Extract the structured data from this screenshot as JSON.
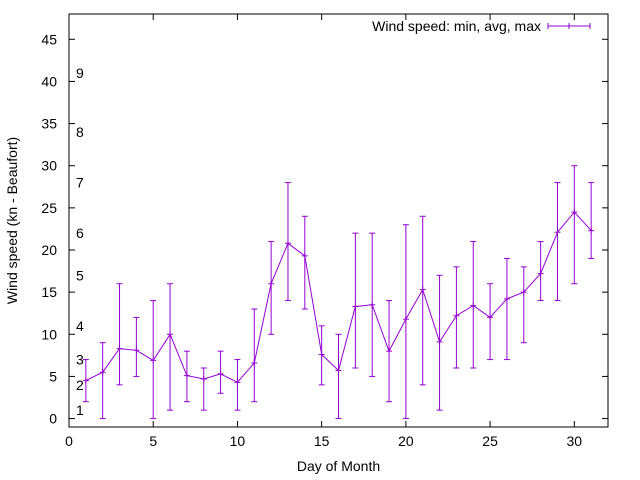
{
  "chart_data": {
    "type": "line",
    "title": "",
    "xlabel": "Day of Month",
    "ylabel": "Wind speed (kn - Beaufort)",
    "xlim": [
      0,
      32
    ],
    "ylim": [
      -1,
      48
    ],
    "xticks": [
      0,
      5,
      10,
      15,
      20,
      25,
      30
    ],
    "yticks": [
      0,
      5,
      10,
      15,
      20,
      25,
      30,
      35,
      40,
      45
    ],
    "grid": false,
    "legend_position": "top-right",
    "series_color": "#9400d3",
    "series": [
      {
        "name": "Wind speed: min, avg, max",
        "errorbars": true,
        "x": [
          1,
          2,
          3,
          4,
          5,
          6,
          7,
          8,
          9,
          10,
          11,
          12,
          13,
          14,
          15,
          16,
          17,
          18,
          19,
          20,
          21,
          22,
          23,
          24,
          25,
          26,
          27,
          28,
          29,
          30,
          31
        ],
        "y": [
          4.5,
          5.5,
          8.3,
          8.1,
          6.9,
          10,
          5.1,
          4.7,
          5.3,
          4.3,
          6.6,
          16,
          20.8,
          19.3,
          7.6,
          5.7,
          13.3,
          13.5,
          8,
          11.8,
          15.3,
          9.1,
          12.2,
          13.4,
          12,
          14.2,
          15,
          17.2,
          22.1,
          24.5,
          22.3
        ],
        "min": [
          2,
          0,
          4,
          5,
          0,
          1,
          2,
          1,
          3,
          1,
          2,
          10,
          14,
          13,
          4,
          0,
          6,
          5,
          2,
          0,
          4,
          1,
          6,
          6,
          7,
          7,
          9,
          14,
          14,
          16,
          19
        ],
        "max": [
          7,
          9,
          16,
          12,
          14,
          16,
          8,
          6,
          8,
          7,
          13,
          21,
          28,
          24,
          11,
          10,
          22,
          22,
          14,
          23,
          24,
          17,
          18,
          21,
          16,
          19,
          18,
          21,
          28,
          30,
          28
        ]
      }
    ],
    "beaufort_labels": [
      {
        "label": "1",
        "y": 1
      },
      {
        "label": "2",
        "y": 4
      },
      {
        "label": "3",
        "y": 7
      },
      {
        "label": "4",
        "y": 11
      },
      {
        "label": "5",
        "y": 17
      },
      {
        "label": "6",
        "y": 22
      },
      {
        "label": "7",
        "y": 28
      },
      {
        "label": "8",
        "y": 34
      },
      {
        "label": "9",
        "y": 41
      }
    ]
  }
}
